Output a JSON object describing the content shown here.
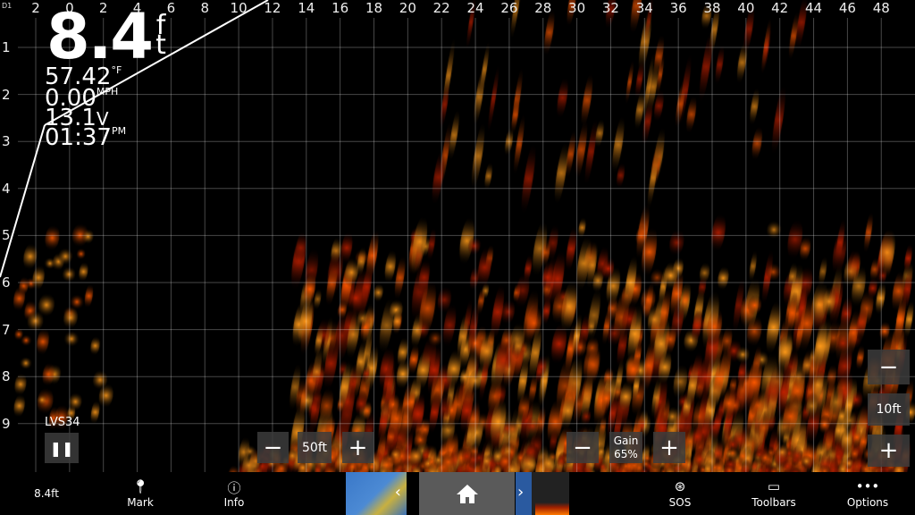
{
  "sonar": {
    "mode_label": "D1",
    "x_labels": [
      "2",
      "0",
      "2",
      "4",
      "6",
      "8",
      "10",
      "12",
      "14",
      "16",
      "18",
      "20",
      "22",
      "24",
      "26",
      "28",
      "30",
      "32",
      "34",
      "36",
      "38",
      "40",
      "42",
      "44",
      "46",
      "48"
    ],
    "y_labels": [
      "1",
      "2",
      "3",
      "4",
      "5",
      "6",
      "7",
      "8",
      "9"
    ],
    "palette": [
      "#ff9a1a",
      "#ff5a00",
      "#c02000"
    ]
  },
  "readouts": {
    "depth": "8.4",
    "depth_unit": "ft",
    "temp": "57.42",
    "temp_unit": "°F",
    "speed": "0.00",
    "speed_unit": "MPH",
    "voltage": "13.1",
    "voltage_unit": "V",
    "time": "01:37",
    "time_unit": "PM"
  },
  "transducer": {
    "label": "LVS34",
    "pause_icon": "pause-icon"
  },
  "range": {
    "minus": "−",
    "value": "50ft",
    "plus": "+"
  },
  "gain": {
    "minus": "−",
    "label": "Gain",
    "value": "65%",
    "plus": "+"
  },
  "zoom": {
    "minus": "−",
    "value": "10ft",
    "plus": "+"
  },
  "bottom_bar": {
    "depth": "8.4ft",
    "mark": "Mark",
    "info": "Info",
    "sos": "SOS",
    "toolbars": "Toolbars",
    "options": "Options"
  }
}
